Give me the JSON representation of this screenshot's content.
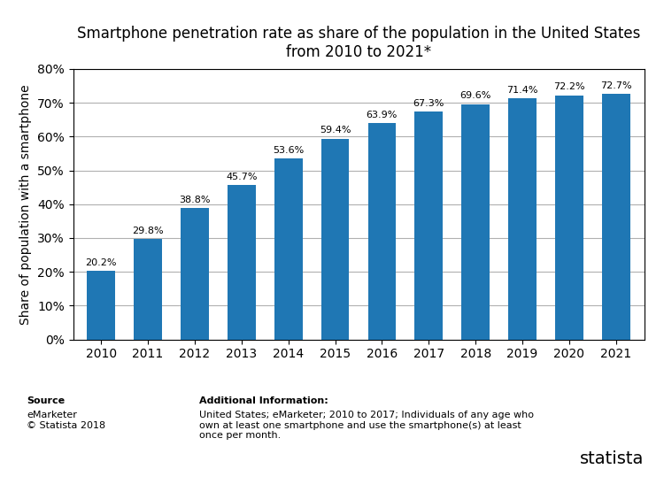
{
  "chart_data": {
    "type": "bar",
    "title": "Smartphone penetration rate as share of the population in the United States\nfrom 2010 to 2021*",
    "y_label": "Share of population with a smartphone",
    "categories": [
      "2010",
      "2011",
      "2012",
      "2013",
      "2014",
      "2015",
      "2016",
      "2017",
      "2018",
      "2019",
      "2020",
      "2021"
    ],
    "values": [
      20.2,
      29.8,
      38.8,
      45.7,
      53.6,
      59.4,
      63.9,
      67.3,
      69.6,
      71.4,
      72.2,
      72.7
    ],
    "value_labels": [
      "20.2%",
      "29.8%",
      "38.8%",
      "45.7%",
      "53.6%",
      "59.4%",
      "63.9%",
      "67.3%",
      "69.6%",
      "71.4%",
      "72.2%",
      "72.7%"
    ],
    "data_labels": true,
    "ylim": [
      0,
      80
    ],
    "yticks": [
      {
        "value": 0,
        "label": "0%"
      },
      {
        "value": 10,
        "label": "10%"
      },
      {
        "value": 20,
        "label": "20%"
      },
      {
        "value": 30,
        "label": "30%"
      },
      {
        "value": 40,
        "label": "40%"
      },
      {
        "value": 50,
        "label": "50%"
      },
      {
        "value": 60,
        "label": "60%"
      },
      {
        "value": 70,
        "label": "70%"
      },
      {
        "value": 80,
        "label": "80%"
      }
    ],
    "grid": true,
    "annotations": [
      "Source",
      "eMarketer\n© Statista 2018",
      "Additional Information:",
      "United States; eMarketer; 2010 to 2017; Individuals of any age who\nown at least one smartphone and use the smartphone(s) at least\nonce per month.",
      "statista"
    ]
  }
}
